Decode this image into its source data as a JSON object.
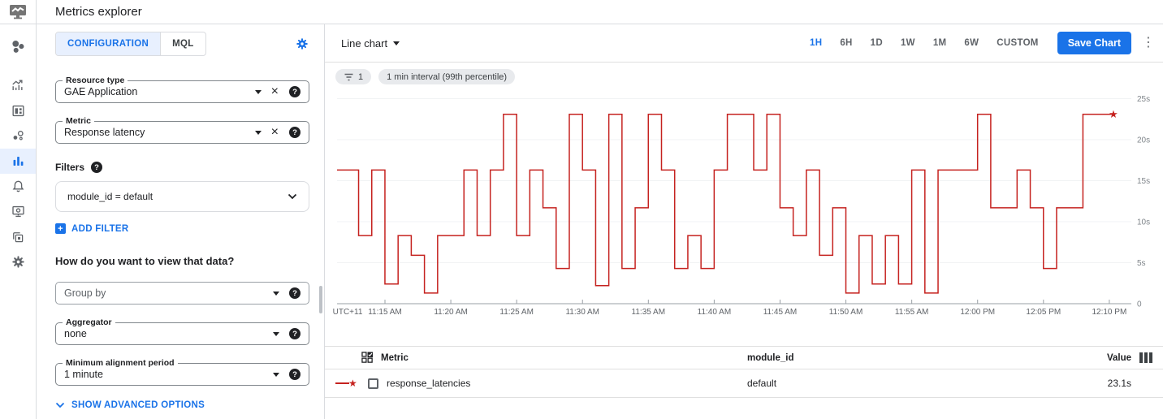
{
  "app": {
    "title": "Metrics explorer"
  },
  "sidebar": {
    "items": [
      {
        "name": "resources",
        "active": false
      },
      {
        "name": "metrics",
        "active": false
      },
      {
        "name": "dashboards",
        "active": false
      },
      {
        "name": "services",
        "active": false
      },
      {
        "name": "metrics-explorer",
        "active": true
      },
      {
        "name": "alerting",
        "active": false
      },
      {
        "name": "uptime-checks",
        "active": false
      },
      {
        "name": "groups",
        "active": false
      },
      {
        "name": "settings",
        "active": false
      }
    ]
  },
  "config": {
    "tabs": [
      {
        "label": "CONFIGURATION",
        "active": true
      },
      {
        "label": "MQL",
        "active": false
      }
    ],
    "resource_type": {
      "label": "Resource type",
      "value": "GAE Application"
    },
    "metric": {
      "label": "Metric",
      "value": "Response latency"
    },
    "filters": {
      "label": "Filters",
      "expression": "module_id = default",
      "add_label": "ADD FILTER"
    },
    "view_question": "How do you want to view that data?",
    "group_by": {
      "placeholder": "Group by"
    },
    "aggregator": {
      "label": "Aggregator",
      "value": "none"
    },
    "alignment": {
      "label": "Minimum alignment period",
      "value": "1 minute"
    },
    "advanced_label": "SHOW ADVANCED OPTIONS"
  },
  "toolbar": {
    "chart_type": "Line chart",
    "time_ranges": [
      "1H",
      "6H",
      "1D",
      "1W",
      "1M",
      "6W",
      "CUSTOM"
    ],
    "active_range": "1H",
    "save_label": "Save Chart"
  },
  "chips": {
    "filter_count": "1",
    "interval_label": "1 min interval (99th percentile)"
  },
  "chart_data": {
    "type": "line",
    "step": true,
    "unit": "seconds",
    "ylim": [
      0,
      26
    ],
    "grid": true,
    "y_tick_values": [
      25,
      20,
      15,
      10,
      5,
      0
    ],
    "y_tick_labels": [
      "25s",
      "20s",
      "15s",
      "10s",
      "5s",
      "0"
    ],
    "x_axis_labels": [
      "UTC+11",
      "11:15 AM",
      "11:20 AM",
      "11:25 AM",
      "11:30 AM",
      "11:35 AM",
      "11:40 AM",
      "11:45 AM",
      "11:50 AM",
      "11:55 AM",
      "12:00 PM",
      "12:05 PM",
      "12:10 PM"
    ],
    "start_time": "11:11 AM",
    "end_time": "12:10 PM",
    "interval_minutes": 1,
    "series": [
      {
        "name": "response_latencies",
        "color": "#c5221f",
        "end_marker": "star",
        "values": [
          16.3,
          16.3,
          8.3,
          16.3,
          2.4,
          8.3,
          5.9,
          1.3,
          8.3,
          8.3,
          16.3,
          8.3,
          16.3,
          23.1,
          8.3,
          16.3,
          11.7,
          4.3,
          23.1,
          16.3,
          2.2,
          23.1,
          4.3,
          11.7,
          23.1,
          16.3,
          4.3,
          8.3,
          4.3,
          16.3,
          23.1,
          23.1,
          16.3,
          23.1,
          11.7,
          8.3,
          16.3,
          5.9,
          11.7,
          1.3,
          8.3,
          2.4,
          8.3,
          2.4,
          16.3,
          1.3,
          16.3,
          16.3,
          16.3,
          23.1,
          11.7,
          11.7,
          16.3,
          11.7,
          4.3,
          11.7,
          11.7,
          23.1,
          23.1,
          23.1
        ]
      }
    ]
  },
  "table": {
    "headers": {
      "metric": "Metric",
      "module_id": "module_id",
      "value": "Value"
    },
    "rows": [
      {
        "metric": "response_latencies",
        "module_id": "default",
        "value": "23.1s",
        "color": "#c5221f"
      }
    ]
  },
  "colors": {
    "accent": "#1a73e8",
    "line": "#c5221f",
    "tab_active_bg": "#e8f0fe",
    "border": "#dadce0",
    "text": "#202124",
    "muted": "#5f6368",
    "axis_label": "#80868b"
  }
}
